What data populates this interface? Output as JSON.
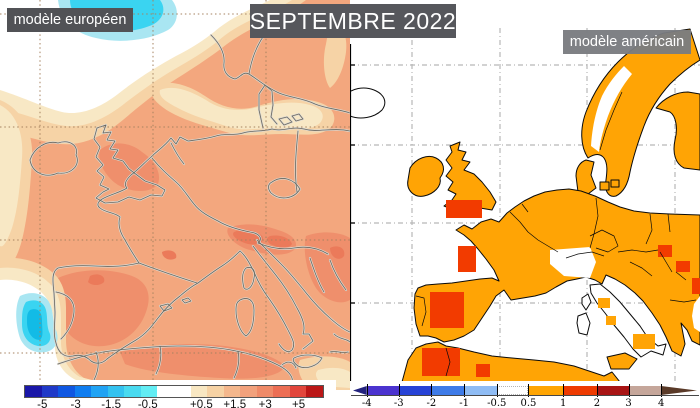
{
  "header": {
    "title": "SEPTEMBRE 2022",
    "left_model_label": "modèle européen",
    "right_model_label": "modèle américain"
  },
  "left_panel": {
    "description": "European model monthly temperature anomaly map",
    "colorbar": {
      "unit_style": "decimal comma",
      "labels": [
        "-5",
        "-3",
        "-1,5",
        "-0,5",
        "+0,5",
        "+1,5",
        "+3",
        "+5"
      ],
      "label_positions_pct": [
        5.8,
        17,
        28.9,
        41.2,
        59.2,
        70.4,
        80.6,
        91.8
      ],
      "stops": [
        {
          "color": "#1A17A8",
          "from": 0,
          "to": 5.56
        },
        {
          "color": "#1F39C8",
          "from": 5.56,
          "to": 11.11
        },
        {
          "color": "#0F57E2",
          "from": 11.11,
          "to": 16.67
        },
        {
          "color": "#0F7DF0",
          "from": 16.67,
          "to": 22.22
        },
        {
          "color": "#20A3F4",
          "from": 22.22,
          "to": 27.78
        },
        {
          "color": "#33C2F0",
          "from": 27.78,
          "to": 33.33
        },
        {
          "color": "#49DAF0",
          "from": 33.33,
          "to": 38.89
        },
        {
          "color": "#62EDF4",
          "from": 38.89,
          "to": 44.44
        },
        {
          "color": "#FFFFFF",
          "from": 44.44,
          "to": 55.56
        },
        {
          "color": "#F8E7C2",
          "from": 55.56,
          "to": 61.11
        },
        {
          "color": "#F6D2A4",
          "from": 61.11,
          "to": 66.67
        },
        {
          "color": "#F4B78C",
          "from": 66.67,
          "to": 72.22
        },
        {
          "color": "#F2A17C",
          "from": 72.22,
          "to": 77.78
        },
        {
          "color": "#EF8A68",
          "from": 77.78,
          "to": 83.33
        },
        {
          "color": "#EC6E54",
          "from": 83.33,
          "to": 88.89
        },
        {
          "color": "#E2463C",
          "from": 88.89,
          "to": 94.44
        },
        {
          "color": "#BB1717",
          "from": 94.44,
          "to": 100
        }
      ]
    }
  },
  "right_panel": {
    "description": "American model monthly temperature anomaly map",
    "colorbar": {
      "unit_style": "decimal point",
      "labels": [
        "-4",
        "-3",
        "-2",
        "-1",
        "-0.5",
        "0.5",
        "1",
        "2",
        "3",
        "4"
      ],
      "label_positions_pct": [
        4,
        13.3,
        22.8,
        32.3,
        41.8,
        51,
        61.1,
        70.9,
        80.1,
        89.6
      ],
      "ticks_pct": [
        4,
        13.3,
        22.8,
        32.3,
        41.8,
        51,
        61.1,
        70.9,
        80.1,
        89.6
      ],
      "stops": [
        {
          "color": "#23237E",
          "from": 0,
          "to": 4,
          "shape": "tip-left"
        },
        {
          "color": "#4B33CF",
          "from": 4,
          "to": 13.3
        },
        {
          "color": "#2743D6",
          "from": 13.3,
          "to": 22.8
        },
        {
          "color": "#3E7BE8",
          "from": 22.8,
          "to": 32.3
        },
        {
          "color": "#8FBCF4",
          "from": 32.3,
          "to": 41.8
        },
        {
          "color": "#FFFFFF",
          "from": 41.8,
          "to": 51,
          "dotted": true
        },
        {
          "color": "#FFA502",
          "from": 51,
          "to": 61.1
        },
        {
          "color": "#EE3A00",
          "from": 61.1,
          "to": 70.9
        },
        {
          "color": "#A81414",
          "from": 70.9,
          "to": 80.1
        },
        {
          "color": "#C5A69A",
          "from": 80.1,
          "to": 89.6
        },
        {
          "color": "#5A3A28",
          "from": 89.6,
          "to": 100,
          "shape": "tip-right"
        }
      ]
    }
  },
  "map_palette": {
    "left_map": {
      "cold_core": "#12BBE6",
      "cold": "#3AD4F1",
      "cold_light": "#A9E6F2",
      "neutral": "#FFFFFF",
      "warm_1": "#F8E8C5",
      "warm_2": "#F6D3A6",
      "warm_3": "#F3A77E",
      "warm_4": "#EF8F6C",
      "warm_5": "#EB7A5A",
      "grid": "#A5825F",
      "coast": "#6A675F"
    },
    "right_map": {
      "anomaly_low": "#FFA405",
      "anomaly_high": "#F23B00",
      "sea": "#FFFFFF",
      "grid": "#B8B8B8",
      "coast": "#0A0A0A"
    }
  }
}
